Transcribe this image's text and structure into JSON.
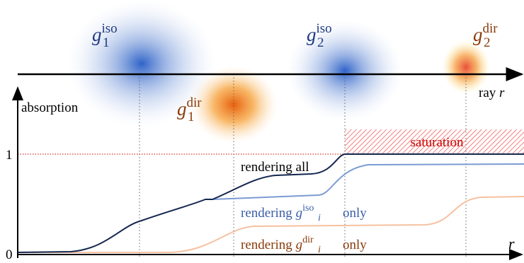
{
  "gaussians": [
    {
      "base": "g",
      "sub": "1",
      "sup": "iso"
    },
    {
      "base": "g",
      "sub": "1",
      "sup": "dir"
    },
    {
      "base": "g",
      "sub": "2",
      "sup": "iso"
    },
    {
      "base": "g",
      "sub": "2",
      "sup": "dir"
    }
  ],
  "ray_axis": {
    "label": "ray",
    "variable": "r"
  },
  "absorption_axis": {
    "label": "absorption",
    "ticks": [
      "0",
      "1"
    ]
  },
  "x_variable": "r",
  "saturation": "saturation",
  "curves": [
    {
      "text": "rendering all"
    },
    {
      "prefix": "rendering",
      "base": "g",
      "sub": "i",
      "sup": "iso",
      "suffix": "only"
    },
    {
      "prefix": "rendering",
      "base": "g",
      "sub": "i",
      "sup": "dir",
      "suffix": "only"
    }
  ]
}
